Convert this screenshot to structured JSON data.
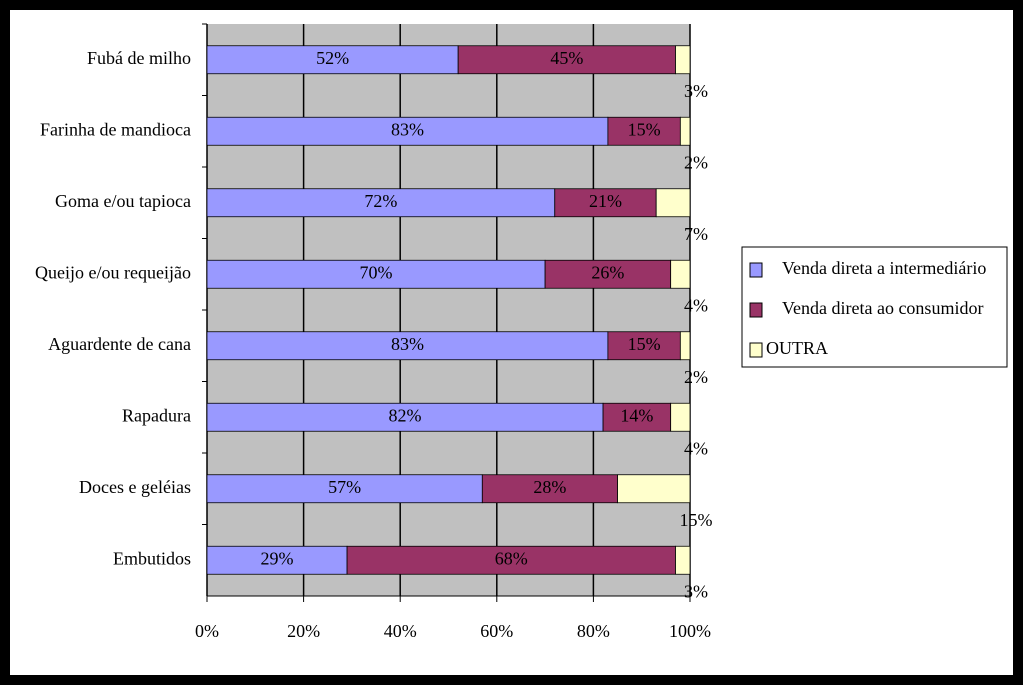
{
  "chart_data": {
    "type": "stacked-bar-horizontal",
    "categories": [
      "Fubá de milho",
      "Farinha de mandioca",
      "Goma e/ou tapioca",
      "Queijo e/ou requeijão",
      "Aguardente de cana",
      "Rapadura",
      "Doces e geléias",
      "Embutidos"
    ],
    "series": [
      {
        "name": "Venda direta a intermediário",
        "color": "#9999ff",
        "values": [
          52,
          83,
          72,
          70,
          83,
          82,
          57,
          29
        ],
        "value_labels": [
          "52%",
          "83%",
          "72%",
          "70%",
          "83%",
          "82%",
          "57%",
          "29%"
        ]
      },
      {
        "name": "Venda direta ao consumidor",
        "color": "#993366",
        "values": [
          45,
          15,
          21,
          26,
          15,
          14,
          28,
          68
        ],
        "value_labels": [
          "45%",
          "15%",
          "21%",
          "26%",
          "15%",
          "14%",
          "28%",
          "68%"
        ]
      },
      {
        "name": "OUTRA",
        "color": "#ffffcc",
        "values": [
          3,
          2,
          7,
          4,
          2,
          4,
          15,
          3
        ],
        "value_labels": [
          "3%",
          "2%",
          "7%",
          "4%",
          "2%",
          "4%",
          "15%",
          "3%"
        ]
      }
    ],
    "xlim": [
      0,
      100
    ],
    "xticks": [
      {
        "value": 0,
        "label": "0%"
      },
      {
        "value": 20,
        "label": "20%"
      },
      {
        "value": 40,
        "label": "40%"
      },
      {
        "value": 60,
        "label": "60%"
      },
      {
        "value": 80,
        "label": "80%"
      },
      {
        "value": 100,
        "label": "100%"
      }
    ],
    "grid": true,
    "legend": "right",
    "plot_background": "#c0c0c0"
  }
}
